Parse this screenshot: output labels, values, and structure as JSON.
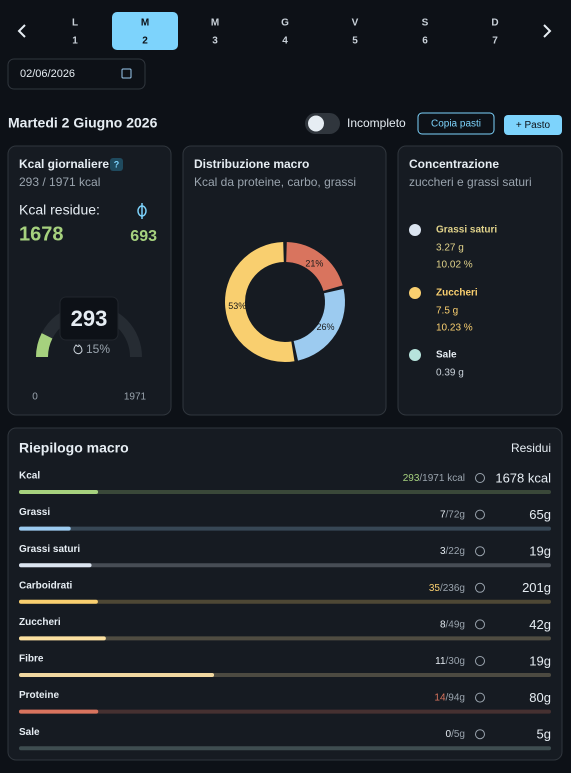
{
  "nav": {
    "days": [
      {
        "letter": "L",
        "number": 1
      },
      {
        "letter": "M",
        "number": 2
      },
      {
        "letter": "M",
        "number": 3
      },
      {
        "letter": "G",
        "number": 4
      },
      {
        "letter": "V",
        "number": 5
      },
      {
        "letter": "S",
        "number": 6
      },
      {
        "letter": "D",
        "number": 7
      }
    ],
    "selected_index": 1
  },
  "date_input": "02/06/2026",
  "header": {
    "title": "Martedi 2 Giugno 2026",
    "toggle_label": "Incompleto",
    "copy_button": "Copia pasti",
    "add_button": "+ Pasto"
  },
  "kcal_card": {
    "title": "Kcal giornaliere",
    "help": "?",
    "summary": "293 / 1971 kcal",
    "residual_label": "Kcal residue:",
    "residual": 1678,
    "secondary": 693,
    "gauge_value": 293,
    "gauge_percent": "15%",
    "gauge_min": 0,
    "gauge_max": 1971,
    "color": "#a6d17e"
  },
  "macro_distribution": {
    "title": "Distribuzione macro",
    "subtitle": "Kcal da proteine, carbo, grassi",
    "values": [
      21,
      26,
      53
    ],
    "value_labels": [
      "21%",
      "26%",
      "53%"
    ],
    "colors": [
      "#d9745e",
      "#9ccbf0",
      "#f9cf6f"
    ]
  },
  "concentration": {
    "title": "Concentrazione",
    "subtitle": "zuccheri e grassi saturi",
    "items": [
      {
        "name": "Grassi saturi",
        "color": "#dbe4f0",
        "name_color": "#e0d28a",
        "amount": "3.27 g",
        "percent": "10.02 %"
      },
      {
        "name": "Zuccheri",
        "color": "#f9cf6f",
        "name_color": "#f9cf6f",
        "amount": "7.5 g",
        "percent": "10.23 %"
      },
      {
        "name": "Sale",
        "color": "#b7e4dc",
        "name_color": "#e6edf3",
        "amount": "0.39 g"
      }
    ]
  },
  "summary": {
    "title": "Riepilogo macro",
    "remaining_header": "Residui",
    "rows": [
      {
        "name": "Kcal",
        "consumed": 293,
        "target": 1971,
        "target_label": "/1971 kcal",
        "remaining": "1678 kcal",
        "color": "#a6d17e",
        "consumed_color": "#a6d17e"
      },
      {
        "name": "Grassi",
        "consumed": 7,
        "target": 72,
        "target_label": "/72g",
        "remaining": "65g",
        "color": "#9ccbf0",
        "consumed_color": "#e6edf3"
      },
      {
        "name": "Grassi saturi",
        "consumed": 3,
        "target": 22,
        "target_label": "/22g",
        "remaining": "19g",
        "color": "#dbe4f0",
        "consumed_color": "#e6edf3"
      },
      {
        "name": "Carboidrati",
        "consumed": 35,
        "target": 236,
        "target_label": "/236g",
        "remaining": "201g",
        "color": "#f9cf6f",
        "consumed_color": "#f9cf6f"
      },
      {
        "name": "Zuccheri",
        "consumed": 8,
        "target": 49,
        "target_label": "/49g",
        "remaining": "42g",
        "color": "#fbe0a0",
        "consumed_color": "#e6edf3"
      },
      {
        "name": "Fibre",
        "consumed": 11,
        "target": 30,
        "target_label": "/30g",
        "remaining": "19g",
        "color": "#f0d7a0",
        "consumed_color": "#e6edf3"
      },
      {
        "name": "Proteine",
        "consumed": 14,
        "target": 94,
        "target_label": "/94g",
        "remaining": "80g",
        "color": "#d9745e",
        "consumed_color": "#d9745e"
      },
      {
        "name": "Sale",
        "consumed": 0,
        "target": 5,
        "target_label": "/5g",
        "remaining": "5g",
        "color": "#b7e4dc",
        "consumed_color": "#e6edf3"
      }
    ]
  }
}
